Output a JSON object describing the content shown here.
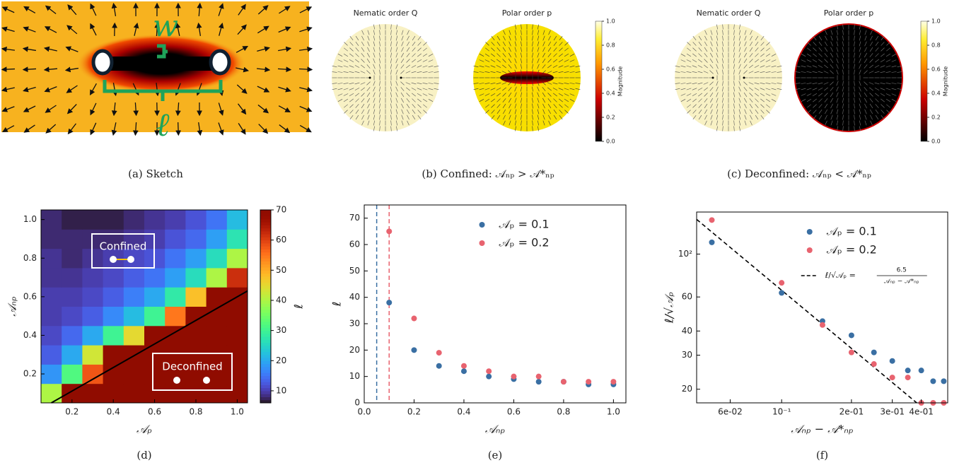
{
  "figure": {
    "panels": [
      {
        "caption": "(a) Sketch",
        "w": "w",
        "ell": "ℓ"
      },
      {
        "caption": "(b) Confined: 𝒜ₙₚ > 𝒜*ₙₚ",
        "left_title": "Nematic order Q",
        "right_title": "Polar order p",
        "colorbar_label": "Magnitude",
        "colorbar_ticks": [
          {
            "value": 0,
            "label": "0.0"
          },
          0.2,
          0.4,
          0.6,
          0.8,
          {
            "value": 1,
            "label": "1.0"
          }
        ]
      },
      {
        "caption": "(c) Deconfined: 𝒜ₙₚ < 𝒜*ₙₚ",
        "left_title": "Nematic order Q",
        "right_title": "Polar order p",
        "colorbar_label": "Magnitude",
        "colorbar_ticks": [
          {
            "value": 0,
            "label": "0.0"
          },
          0.2,
          0.4,
          0.6,
          0.8,
          {
            "value": 1,
            "label": "1.0"
          }
        ]
      }
    ]
  },
  "chart_data": [
    {
      "type": "heatmap",
      "caption": "(d)",
      "xlabel": "𝒜ₚ",
      "ylabel": "𝒜ₙₚ",
      "x": [
        0.1,
        0.2,
        0.3,
        0.4,
        0.5,
        0.6,
        0.7,
        0.8,
        0.9,
        1.0
      ],
      "y": [
        0.1,
        0.2,
        0.3,
        0.4,
        0.5,
        0.6,
        0.7,
        0.8,
        0.9,
        1.0
      ],
      "values": [
        [
          40,
          70,
          70,
          70,
          70,
          70,
          70,
          70,
          70,
          70
        ],
        [
          18,
          32,
          58,
          70,
          70,
          70,
          70,
          70,
          70,
          70
        ],
        [
          13,
          20,
          43,
          70,
          70,
          70,
          70,
          70,
          70,
          70
        ],
        [
          11,
          14,
          20,
          30,
          45,
          70,
          70,
          70,
          70,
          70
        ],
        [
          10,
          11,
          13,
          17,
          22,
          30,
          55,
          70,
          70,
          70
        ],
        [
          10,
          10,
          11,
          13,
          16,
          20,
          28,
          48,
          70,
          70
        ],
        [
          9,
          9,
          10,
          11,
          13,
          15,
          19,
          26,
          40,
          62
        ],
        [
          9,
          8,
          9,
          10,
          11,
          12,
          15,
          19,
          26,
          40
        ],
        [
          8,
          8,
          8,
          8,
          9,
          10,
          12,
          14,
          19,
          27
        ],
        [
          8,
          7,
          7,
          7,
          8,
          9,
          10,
          12,
          15,
          22
        ]
      ],
      "xlim": [
        0.05,
        1.05
      ],
      "ylim": [
        0.05,
        1.05
      ],
      "xticks": [
        0.2,
        0.4,
        0.6,
        0.8,
        {
          "value": 1,
          "label": "1.0"
        }
      ],
      "yticks": [
        0.2,
        0.4,
        0.6,
        0.8,
        {
          "value": 1,
          "label": "1.0"
        }
      ],
      "colorbar": {
        "label": "ℓ",
        "clim": [
          6,
          70
        ],
        "ticks": [
          10,
          20,
          30,
          40,
          50,
          60,
          70
        ]
      },
      "boundary": {
        "x": [
          0.1,
          1.05
        ],
        "y": [
          0.05,
          0.63
        ]
      },
      "annotations": [
        "Confined",
        "Deconfined"
      ]
    },
    {
      "type": "scatter",
      "caption": "(e)",
      "xlabel": "𝒜ₙₚ",
      "ylabel": "ℓ",
      "xlim": [
        0,
        1.05
      ],
      "ylim": [
        0,
        75
      ],
      "xticks": [
        {
          "value": 0,
          "label": "0.0"
        },
        0.2,
        0.4,
        0.6,
        0.8,
        {
          "value": 1,
          "label": "1.0"
        }
      ],
      "yticks": [
        0,
        10,
        20,
        30,
        40,
        50,
        60,
        70
      ],
      "series": [
        {
          "name": "𝒜ₚ = 0.1",
          "color": "#3a6fa3",
          "x": [
            0.1,
            0.2,
            0.3,
            0.4,
            0.5,
            0.6,
            0.7,
            0.8,
            0.9,
            1.0
          ],
          "values": [
            38,
            20,
            14,
            12,
            10,
            9,
            8,
            8,
            7,
            7
          ]
        },
        {
          "name": "𝒜ₚ = 0.2",
          "color": "#e8636f",
          "x": [
            0.1,
            0.2,
            0.3,
            0.4,
            0.5,
            0.6,
            0.7,
            0.8,
            0.9,
            1.0
          ],
          "values": [
            65,
            32,
            19,
            14,
            12,
            10,
            10,
            8,
            8,
            8
          ]
        }
      ],
      "critical_lines": [
        {
          "x": 0.05,
          "color": "#3a6fa3"
        },
        {
          "x": 0.1,
          "color": "#e8636f"
        }
      ]
    },
    {
      "type": "scatter",
      "caption": "(f)",
      "xlabel": "𝒜ₙₚ − 𝒜*ₙₚ",
      "ylabel": "ℓ/√𝒜ₚ",
      "log_x": true,
      "log_y": true,
      "xlim": [
        0.043,
        0.52
      ],
      "ylim": [
        17,
        165
      ],
      "xticks": [
        {
          "value": 0.06,
          "label": "6e-02"
        },
        {
          "value": 0.1,
          "label": "10⁻¹"
        },
        {
          "value": 0.2,
          "label": "2e-01"
        },
        {
          "value": 0.3,
          "label": "3e-01"
        },
        {
          "value": 0.4,
          "label": "4e-01"
        }
      ],
      "yticks": [
        20,
        30,
        40,
        60,
        {
          "value": 100,
          "label": "10²"
        }
      ],
      "series": [
        {
          "name": "𝒜ₚ =  0.1",
          "color": "#3a6fa3",
          "x": [
            0.05,
            0.1,
            0.15,
            0.2,
            0.25,
            0.3,
            0.35,
            0.4,
            0.45,
            0.5
          ],
          "values": [
            115,
            63,
            45,
            38,
            31,
            28,
            25,
            25,
            22,
            22
          ]
        },
        {
          "name": "𝒜ₚ =  0.2",
          "color": "#e8636f",
          "x": [
            0.05,
            0.1,
            0.15,
            0.2,
            0.25,
            0.3,
            0.35,
            0.4,
            0.45,
            0.5
          ],
          "values": [
            150,
            71,
            43,
            31,
            27,
            23,
            23,
            17,
            17,
            17
          ]
        }
      ],
      "fit": {
        "lhs": "ℓ/√𝒜ₚ =",
        "coefficient": 6.5,
        "denominator": "𝒜ₙₚ − 𝒜*ₙₚ"
      }
    }
  ]
}
